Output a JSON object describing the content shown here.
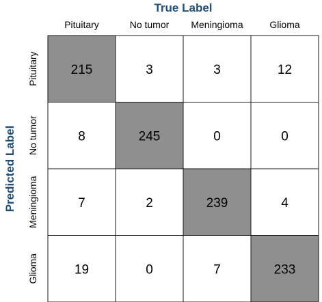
{
  "chart_data": {
    "type": "heatmap",
    "title": "",
    "xlabel": "True Label",
    "ylabel": "Predicted Label",
    "x_categories": [
      "Pituitary",
      "No tumor",
      "Meningioma",
      "Glioma"
    ],
    "y_categories": [
      "Pituitary",
      "No tumor",
      "Meningioma",
      "Glioma"
    ],
    "values": [
      [
        215,
        3,
        3,
        12
      ],
      [
        8,
        245,
        0,
        0
      ],
      [
        7,
        2,
        239,
        4
      ],
      [
        19,
        0,
        7,
        233
      ]
    ],
    "highlight": "diagonal",
    "colors": {
      "highlight_cell": "#8f8f8f",
      "normal_cell": "#ffffff",
      "grid_line": "#1a1a1a",
      "axis_title": "#1f4e79",
      "text": "#000000"
    }
  }
}
